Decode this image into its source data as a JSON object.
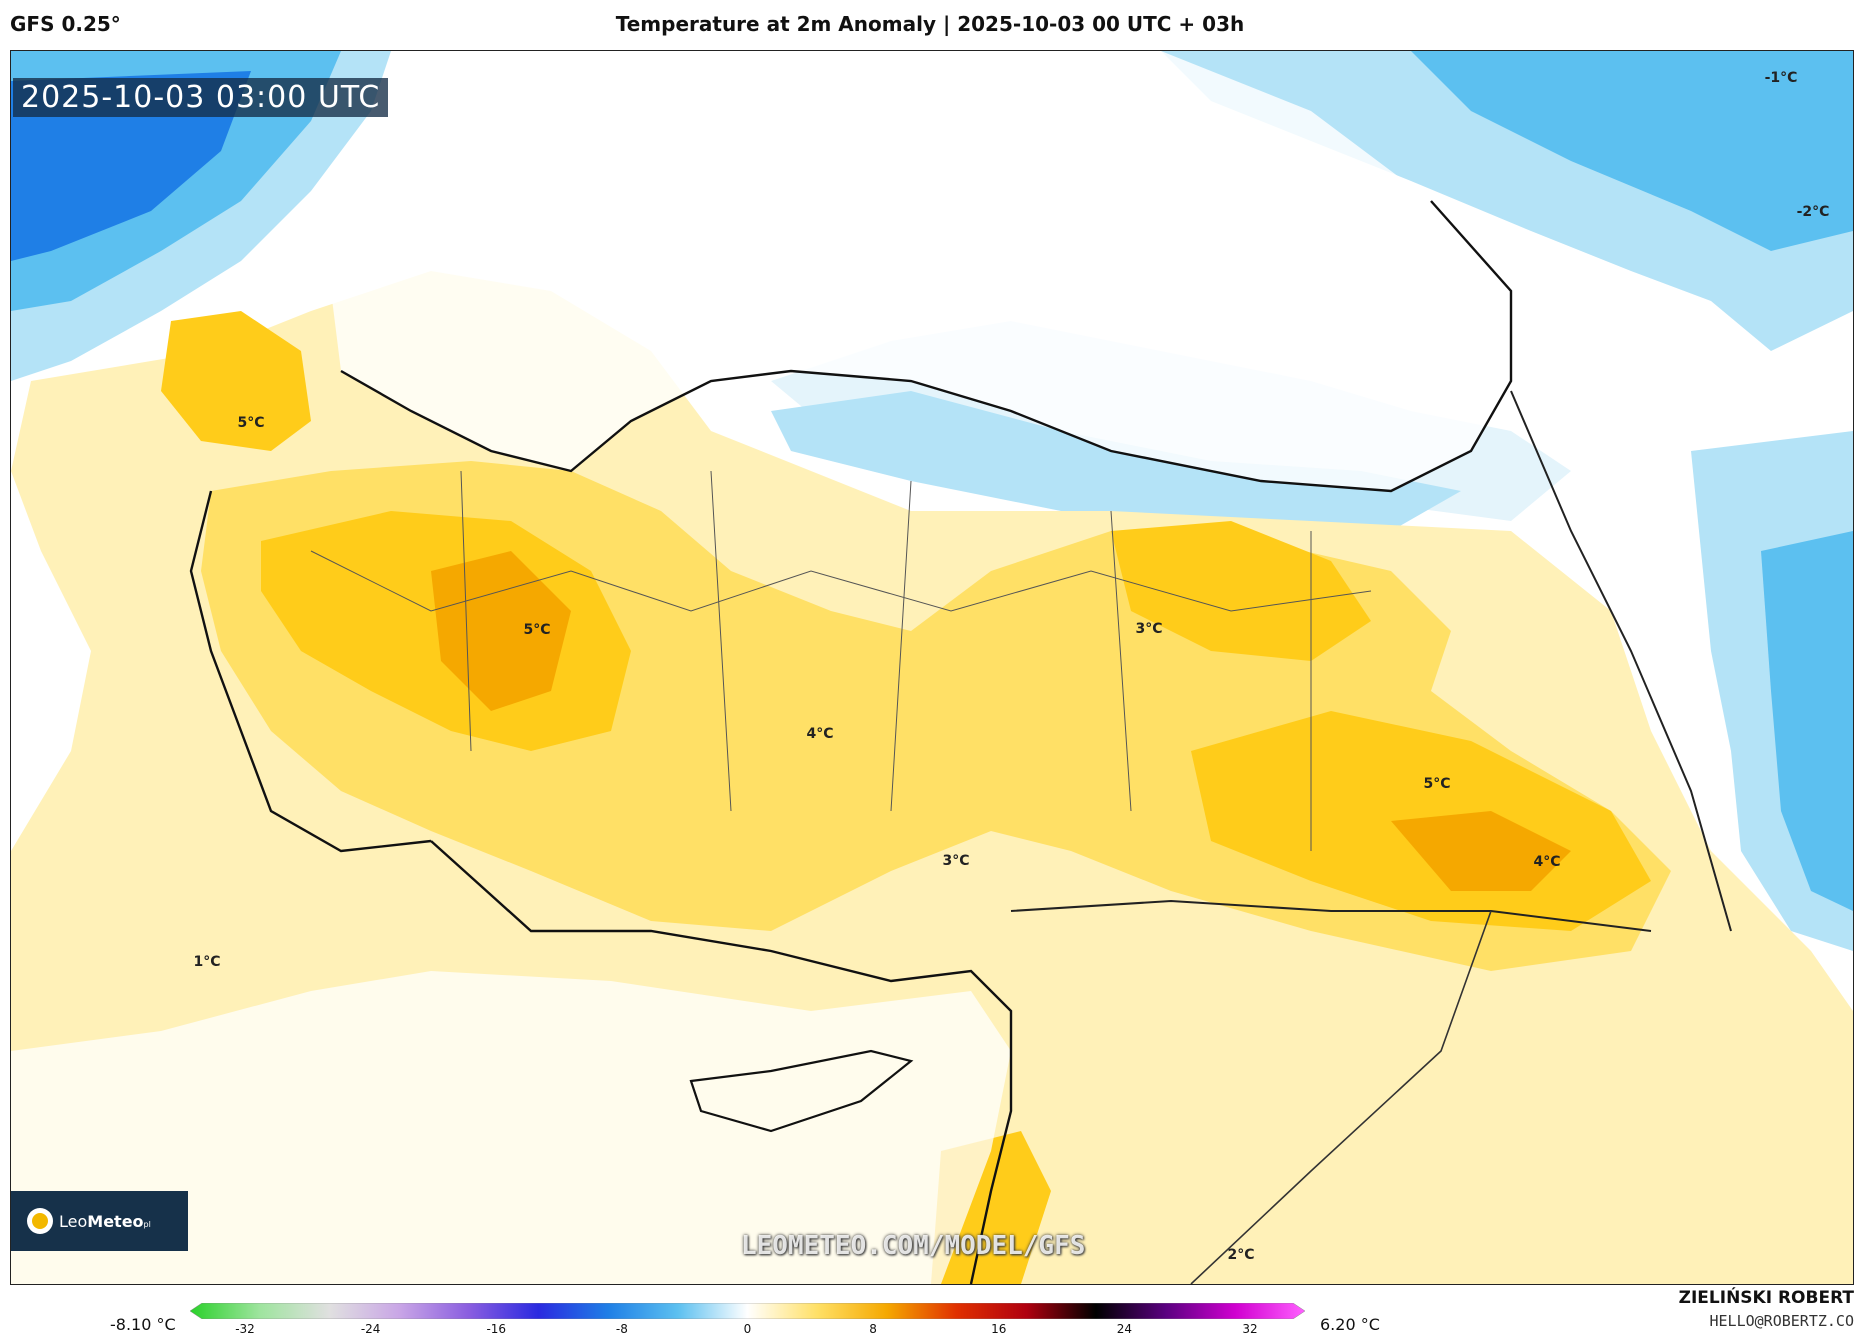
{
  "header": {
    "model": "GFS 0.25°",
    "title": "Temperature at 2m Anomaly | 2025-10-03 00 UTC + 03h"
  },
  "map": {
    "valid_time": "2025-10-03 03:00 UTC",
    "watermark": "LEOMETEO.COM/MODEL/GFS",
    "contour_labels": [
      "-1°C",
      "-2°C",
      "5°C",
      "5°C",
      "3°C",
      "4°C",
      "5°C",
      "4°C",
      "3°C",
      "1°C",
      "2°C"
    ],
    "colors": {
      "cold_strong": "#1f7fe6",
      "cold": "#5cc0f0",
      "cold_light": "#b4e3f7",
      "cold_pale": "#e4f4fb",
      "warm_pale": "#fff1b8",
      "warm": "#ffe066",
      "warm_mid": "#ffcc1a",
      "warm_strong": "#f5a800",
      "coast": "#111111",
      "border": "#555555"
    }
  },
  "logo": {
    "brand_light": "Leo",
    "brand_bold": "Meteo",
    "suffix": "pl"
  },
  "colorbar": {
    "min_label": "-8.10 °C",
    "max_label": "6.20 °C",
    "ticks": [
      "-32",
      "-24",
      "-16",
      "-8",
      "0",
      "8",
      "16",
      "24",
      "32"
    ],
    "stops": [
      "#2ad12a",
      "#9ee49e",
      "#e0e0e0",
      "#c9a6e6",
      "#8a5ee0",
      "#2a2ae0",
      "#1f7fe6",
      "#5cc0f0",
      "#ffffff",
      "#ffe066",
      "#f5a800",
      "#e03000",
      "#b00010",
      "#000000",
      "#5a0080",
      "#d000d0",
      "#ff60ff"
    ]
  },
  "credits": {
    "author": "ZIELIŃSKI ROBERT",
    "email": "HELLO@ROBERTZ.CO"
  }
}
